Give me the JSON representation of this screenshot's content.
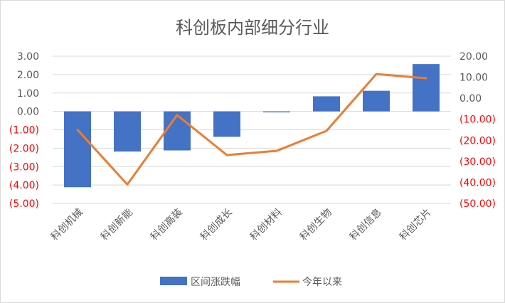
{
  "chart_data": {
    "type": "bar",
    "title": "科创板内部细分行业",
    "categories": [
      "科创机械",
      "科创新能",
      "科创高装",
      "科创成长",
      "科创材料",
      "科创生物",
      "科创信息",
      "科创芯片"
    ],
    "series": [
      {
        "name": "区间涨跌幅",
        "type": "bar",
        "axis": "left",
        "color": "#4472C4",
        "values": [
          -4.12,
          -2.18,
          -2.12,
          -1.38,
          -0.05,
          0.82,
          1.12,
          2.57
        ]
      },
      {
        "name": "今年以来",
        "type": "line",
        "axis": "right",
        "color": "#ED7D31",
        "values": [
          -15.0,
          -41.0,
          -8.0,
          -27.0,
          -25.0,
          -15.5,
          11.5,
          9.5
        ]
      }
    ],
    "y_left": {
      "ylim": [
        -5,
        3
      ],
      "ticks": [
        "3.00",
        "2.00",
        "1.00",
        "0.00",
        "(1.00)",
        "(2.00)",
        "(3.00)",
        "(4.00)",
        "(5.00)"
      ]
    },
    "y_right": {
      "ylim": [
        -50,
        20
      ],
      "ticks": [
        "20.00",
        "10.00",
        "0.00",
        "(10.00)",
        "(20.00)",
        "(30.00)",
        "(40.00)",
        "(50.00)"
      ]
    },
    "negative_label_color": "#FF0000",
    "tick_label_color": "#595959",
    "grid": true,
    "legend_position": "bottom"
  }
}
